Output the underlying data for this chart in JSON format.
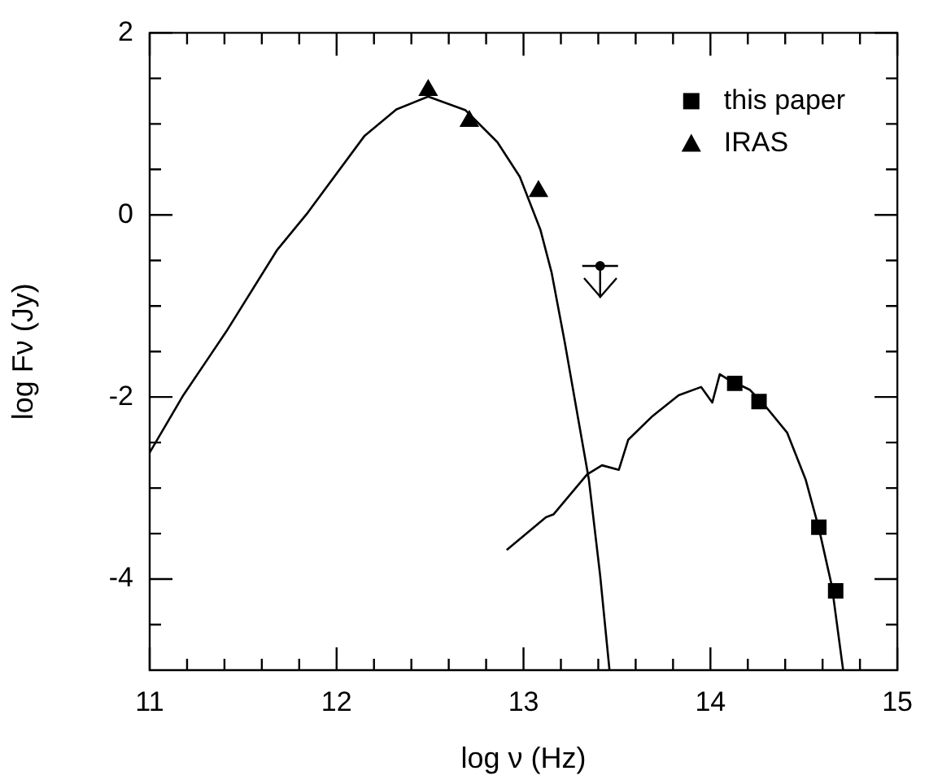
{
  "chart_data": {
    "type": "scatter",
    "xlabel": "log ν (Hz)",
    "ylabel": "log Fν (Jy)",
    "xlim": [
      11,
      15
    ],
    "ylim": [
      -5,
      2
    ],
    "xticks": [
      11,
      {
        "value": 11.2,
        "label": null
      },
      {
        "value": 11.4,
        "label": null
      },
      {
        "value": 11.6,
        "label": null
      },
      {
        "value": 11.8,
        "label": null
      },
      12,
      {
        "value": 12.2,
        "label": null
      },
      {
        "value": 12.4,
        "label": null
      },
      {
        "value": 12.6,
        "label": null
      },
      {
        "value": 12.8,
        "label": null
      },
      13,
      {
        "value": 13.2,
        "label": null
      },
      {
        "value": 13.4,
        "label": null
      },
      {
        "value": 13.6,
        "label": null
      },
      {
        "value": 13.8,
        "label": null
      },
      14,
      {
        "value": 14.2,
        "label": null
      },
      {
        "value": 14.4,
        "label": null
      },
      {
        "value": 14.6,
        "label": null
      },
      {
        "value": 14.8,
        "label": null
      },
      15
    ],
    "yticks": [
      {
        "value": -4.5,
        "label": null
      },
      -4,
      {
        "value": -3.5,
        "label": null
      },
      {
        "value": -3,
        "label": null
      },
      {
        "value": -2.5,
        "label": null
      },
      -2,
      {
        "value": -1.5,
        "label": null
      },
      {
        "value": -1,
        "label": null
      },
      {
        "value": -0.5,
        "label": null
      },
      0,
      {
        "value": 0.5,
        "label": null
      },
      {
        "value": 1,
        "label": null
      },
      {
        "value": 1.5,
        "label": null
      },
      2
    ],
    "grid": false,
    "legend": "top right",
    "series": [
      {
        "name": "this paper",
        "color": "#000000",
        "type": "scatter",
        "marker": "square",
        "x": [
          14.13,
          14.26,
          14.58,
          14.67
        ],
        "values": [
          -1.85,
          -2.05,
          -3.43,
          -4.13
        ]
      },
      {
        "name": "IRAS",
        "color": "#000000",
        "type": "scatter",
        "marker": "triangle",
        "x": [
          12.49,
          12.71,
          13.08
        ],
        "values": [
          1.37,
          1.03,
          0.26
        ]
      },
      {
        "color": "#000000",
        "type": "scatter",
        "marker": "circle",
        "x": [
          13.41
        ],
        "values": [
          -0.56
        ],
        "errors": [
          [
            -0.91,
            -0.56
          ]
        ]
      },
      {
        "color": "#000000",
        "type": "line",
        "x": [
          11,
          11.18,
          11.41,
          11.68,
          11.84,
          12.15,
          12.32,
          12.49,
          12.69,
          12.86,
          12.98,
          13.09,
          13.15,
          13.22,
          13.29,
          13.35,
          13.41,
          13.46
        ],
        "values": [
          -2.61,
          -1.98,
          -1.28,
          -0.39,
          0.01,
          0.87,
          1.16,
          1.3,
          1.15,
          0.8,
          0.42,
          -0.16,
          -0.63,
          -1.39,
          -2.21,
          -2.91,
          -3.96,
          -5
        ]
      },
      {
        "color": "#000000",
        "type": "line",
        "x": [
          12.91,
          13.12,
          13.16,
          13.34,
          13.42,
          13.51,
          13.56,
          13.69,
          13.83,
          13.95,
          14.01,
          14.05,
          14.09,
          14.21,
          14.29,
          14.41,
          14.51,
          14.58,
          14.65,
          14.71
        ],
        "values": [
          -3.68,
          -3.32,
          -3.29,
          -2.85,
          -2.75,
          -2.8,
          -2.47,
          -2.21,
          -1.98,
          -1.89,
          -2.06,
          -1.75,
          -1.8,
          -1.92,
          -2.09,
          -2.39,
          -2.91,
          -3.44,
          -4.08,
          -5
        ]
      }
    ]
  }
}
